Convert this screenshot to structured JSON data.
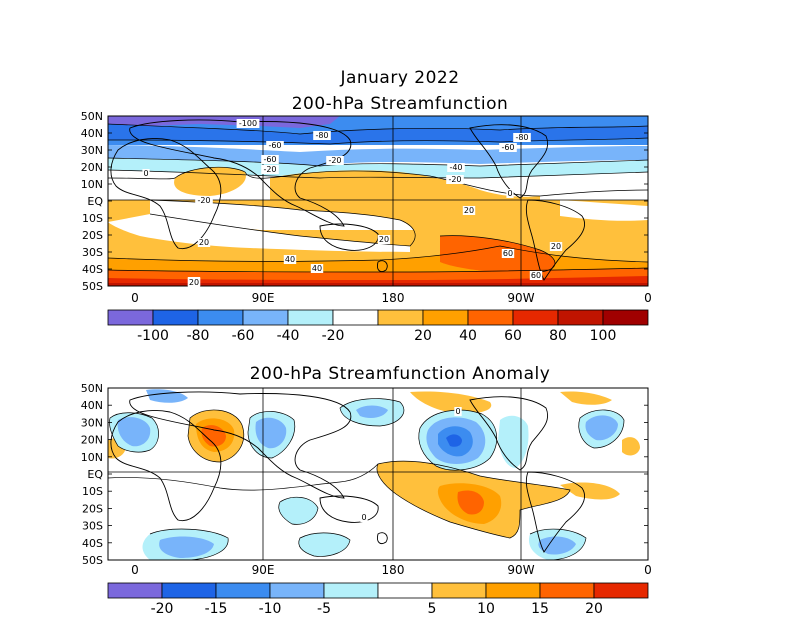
{
  "header": {
    "month_title": "January 2022"
  },
  "panels": [
    {
      "title": "200-hPa Streamfunction",
      "lat_labels": [
        "50N",
        "40N",
        "30N",
        "20N",
        "10N",
        "EQ",
        "10S",
        "20S",
        "30S",
        "40S",
        "50S"
      ],
      "lon_labels": [
        "0",
        "90E",
        "180",
        "90W",
        "0"
      ],
      "colorbar_labels": [
        "-100",
        "-80",
        "-60",
        "-40",
        "-20",
        "20",
        "40",
        "60",
        "80",
        "100"
      ],
      "colorbar_colors": [
        "#7b68dc",
        "#1e64e6",
        "#3c8cf0",
        "#78b4fa",
        "#b4f0fa",
        "#ffffff",
        "#ffc03c",
        "#ffa000",
        "#ff6400",
        "#e62800",
        "#c01400",
        "#a00000"
      ],
      "contour_labels": [
        "-100",
        "-80",
        "-60",
        "-60",
        "-60",
        "-40",
        "-20",
        "-20",
        "-20",
        "0",
        "0",
        "-20",
        "20",
        "20",
        "20",
        "40",
        "40",
        "60",
        "60",
        "80",
        "20",
        "20",
        "-80"
      ]
    },
    {
      "title": "200-hPa Streamfunction Anomaly",
      "lat_labels": [
        "50N",
        "40N",
        "30N",
        "20N",
        "10N",
        "EQ",
        "10S",
        "20S",
        "30S",
        "40S",
        "50S"
      ],
      "lon_labels": [
        "0",
        "90E",
        "180",
        "90W",
        "0"
      ],
      "colorbar_labels": [
        "-20",
        "-15",
        "-10",
        "-5",
        "5",
        "10",
        "15",
        "20"
      ],
      "colorbar_colors": [
        "#7b68dc",
        "#1e64e6",
        "#3c8cf0",
        "#78b4fa",
        "#b4f0fa",
        "#ffffff",
        "#ffc03c",
        "#ffa000",
        "#ff6400",
        "#e62800"
      ],
      "contour_labels": [
        "0",
        "0",
        "0",
        "0"
      ]
    }
  ]
}
